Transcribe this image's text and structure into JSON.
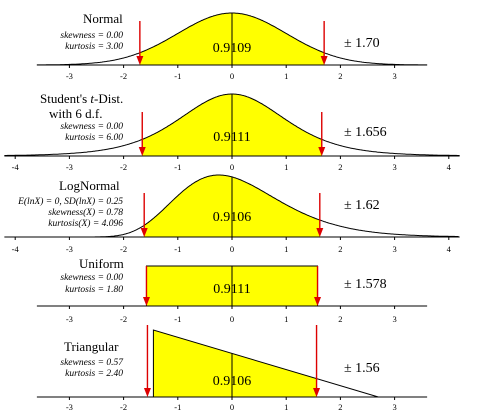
{
  "chart_data": [
    {
      "type": "area",
      "id": "normal",
      "title": "Normal",
      "title_style": "plain",
      "stats": [
        "skewness = 0.00",
        "kurtosis = 3.00"
      ],
      "area_label": "0.9109",
      "range_label": "± 1.70",
      "interval": [
        -1.7,
        1.7
      ],
      "xlim": [
        -3.6,
        3.6
      ],
      "ticks": [
        "-3",
        "-2",
        "-1",
        "0",
        "1",
        "2",
        "3"
      ],
      "density": "normal",
      "fill_color": "#ffff00",
      "arrow_color": "#dd0000"
    },
    {
      "type": "area",
      "id": "student-t",
      "title_parts": [
        "Student's ",
        "t",
        "-Dist."
      ],
      "subtitle": "with 6 d.f.",
      "stats": [
        "skewness = 0.00",
        "kurtosis = 6.00"
      ],
      "area_label": "0.9111",
      "range_label": "± 1.656",
      "interval": [
        -1.656,
        1.656
      ],
      "xlim": [
        -4.2,
        4.2
      ],
      "ticks": [
        "-4",
        "-3",
        "-2",
        "-1",
        "0",
        "1",
        "2",
        "3",
        "4"
      ],
      "density": "t6",
      "fill_color": "#ffff00",
      "arrow_color": "#dd0000"
    },
    {
      "type": "area",
      "id": "lognormal",
      "title": "LogNormal",
      "stats": [
        "E(lnX) = 0, SD(lnX) = 0.25",
        "skewness(X) = 0.78",
        "kurtosis(X) = 4.096"
      ],
      "area_label": "0.9106",
      "range_label": "± 1.62",
      "interval": [
        -1.62,
        1.62
      ],
      "xlim": [
        -4.2,
        4.2
      ],
      "ticks": [
        "-4",
        "-3",
        "-2",
        "-1",
        "0",
        "1",
        "2",
        "3",
        "4"
      ],
      "density": "lognormal",
      "fill_color": "#ffff00",
      "arrow_color": "#dd0000"
    },
    {
      "type": "area",
      "id": "uniform",
      "title": "Uniform",
      "stats": [
        "skewness = 0.00",
        "kurtosis = 1.80"
      ],
      "area_label": "0.9111",
      "range_label": "± 1.578",
      "interval": [
        -1.578,
        1.578
      ],
      "xlim": [
        -3.6,
        3.6
      ],
      "ticks": [
        "-3",
        "-2",
        "-1",
        "0",
        "1",
        "2",
        "3"
      ],
      "density": "uniform",
      "fill_color": "#ffff00",
      "arrow_color": "#dd0000"
    },
    {
      "type": "area",
      "id": "triangular",
      "title": "Triangular",
      "stats": [
        "skewness = 0.57",
        "kurtosis = 2.40"
      ],
      "area_label": "0.9106",
      "range_label": "± 1.56",
      "interval": [
        -1.56,
        1.56
      ],
      "xlim": [
        -3.6,
        3.6
      ],
      "ticks": [
        "-3",
        "-2",
        "-1",
        "0",
        "1",
        "2",
        "3"
      ],
      "density": "triangular",
      "fill_color": "#ffff00",
      "arrow_color": "#dd0000"
    }
  ]
}
